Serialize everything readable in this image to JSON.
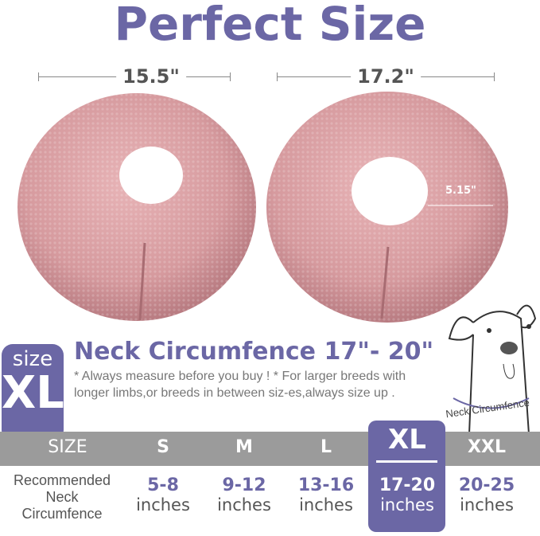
{
  "title": "Perfect Size",
  "dimensions": {
    "left_width": "15.5\"",
    "right_width": "17.2\"",
    "inner_depth": "5.15\""
  },
  "badge": {
    "small": "size",
    "large": "XL"
  },
  "heading": "Neck Circumfence 17\"- 20\"",
  "note": "* Always measure before you buy !   * For larger breeds with longer limbs,or breeds in between siz-es,always size up .",
  "dog_label": "Neck Circumfence",
  "table": {
    "header_label": "SIZE",
    "row_label": "Recommended Neck Circumfence",
    "unit": "inches",
    "selected": "XL",
    "columns": [
      {
        "size": "S",
        "range": "5-8"
      },
      {
        "size": "M",
        "range": "9-12"
      },
      {
        "size": "L",
        "range": "13-16"
      },
      {
        "size": "XL",
        "range": "17-20"
      },
      {
        "size": "XXL",
        "range": "20-25"
      }
    ]
  },
  "colors": {
    "accent": "#6b67a5",
    "bar": "#9b9b9b",
    "product": "#d9a0a4"
  }
}
